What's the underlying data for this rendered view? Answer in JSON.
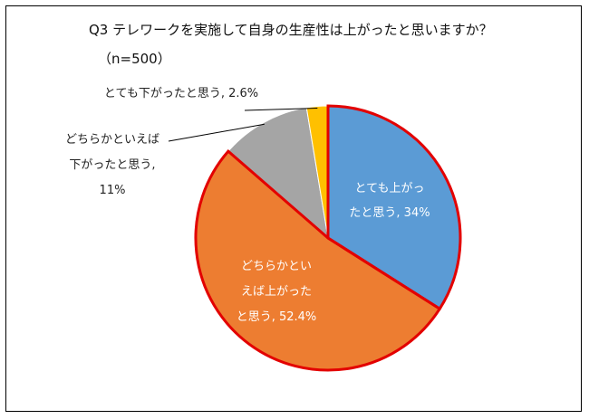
{
  "title": "Q3 テレワークを実施して自身の生産性は上がったと思いますか？",
  "subtitle": "（n=500）",
  "colors": {
    "s1": "#5b9bd5",
    "s2": "#ed7d31",
    "s3": "#a5a5a5",
    "s4": "#ffc000",
    "highlight_border": "#e30000",
    "leader": "#000000"
  },
  "chart_data": {
    "type": "pie",
    "title": "Q3 テレワークを実施して自身の生産性は上がったと思いますか？",
    "subtitle": "（n=500）",
    "slices": [
      {
        "name": "とても上がった",
        "value": 34,
        "color": "#5b9bd5",
        "highlighted": true,
        "label_lines": [
          "とても上がっ",
          "たと思う, 34%"
        ]
      },
      {
        "name": "どちらかといえば上がったと思う",
        "value": 52.4,
        "color": "#ed7d31",
        "highlighted": true,
        "label_lines": [
          "どちらかとい",
          "えば上がった",
          "と思う, 52.4%"
        ]
      },
      {
        "name": "どちらかといえば下がったと思う",
        "value": 11,
        "color": "#a5a5a5",
        "highlighted": false,
        "label_lines": [
          "どちらかといえば",
          "下がったと思う,",
          "11%"
        ]
      },
      {
        "name": "とても下がったと思う",
        "value": 2.6,
        "color": "#ffc000",
        "highlighted": false,
        "label_lines": [
          "とても下がったと思う, 2.6%"
        ]
      }
    ]
  }
}
